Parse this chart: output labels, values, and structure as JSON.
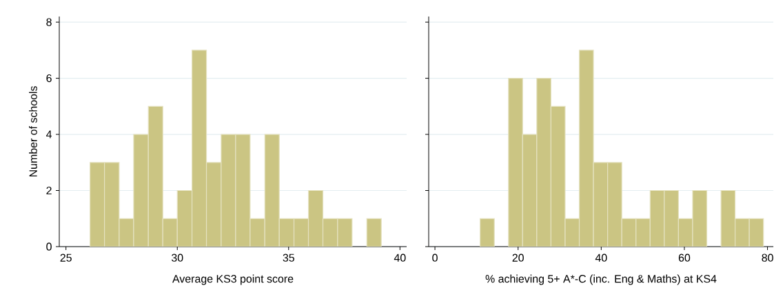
{
  "chart_data": [
    {
      "type": "histogram",
      "xlabel": "Average KS3 point score",
      "ylabel": "Number of schools",
      "bins": [
        26.08,
        26.73,
        27.39,
        28.04,
        28.7,
        29.35,
        30.0,
        30.66,
        31.31,
        31.97,
        32.62,
        33.27,
        33.93,
        34.58,
        35.24,
        35.89,
        36.54,
        37.2,
        37.85,
        38.51,
        39.16
      ],
      "values": [
        3,
        3,
        1,
        4,
        5,
        1,
        2,
        7,
        3,
        4,
        4,
        1,
        4,
        1,
        1,
        2,
        1,
        1,
        0,
        1
      ],
      "color": "#cbc583",
      "xlim": [
        24.7,
        40.3
      ],
      "ylim": [
        0,
        8.2
      ],
      "xticks": [
        25,
        30,
        35,
        40
      ],
      "yticks": [
        0,
        2,
        4,
        6,
        8
      ],
      "grid": "y"
    },
    {
      "type": "histogram",
      "xlabel": "% achieving 5+ A*-C (inc. Eng & Maths) at KS4",
      "bins": [
        10.87,
        14.28,
        17.69,
        21.09,
        24.5,
        27.91,
        31.32,
        34.73,
        38.13,
        41.54,
        44.95,
        48.36,
        51.77,
        55.17,
        58.58,
        61.99,
        65.4,
        68.81,
        72.21,
        75.62,
        79.03
      ],
      "values": [
        1,
        0,
        6,
        4,
        6,
        5,
        1,
        7,
        3,
        3,
        1,
        1,
        2,
        2,
        1,
        2,
        0,
        2,
        1,
        1
      ],
      "color": "#cbc583",
      "xlim": [
        -1.5,
        81.4
      ],
      "ylim": [
        0,
        8.2
      ],
      "xticks": [
        0,
        20,
        40,
        60,
        80
      ],
      "yticks": [
        0,
        2,
        4,
        6,
        8
      ],
      "grid": "y",
      "tick_labels": "x"
    }
  ]
}
